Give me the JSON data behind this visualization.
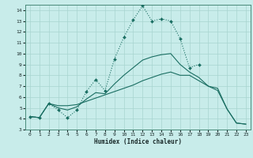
{
  "xlabel": "Humidex (Indice chaleur)",
  "bg_color": "#c8ecea",
  "grid_color": "#a8d4d0",
  "line_color": "#1a6e62",
  "xlim": [
    -0.5,
    23.5
  ],
  "ylim": [
    3,
    14.5
  ],
  "xticks": [
    0,
    1,
    2,
    3,
    4,
    5,
    6,
    7,
    8,
    9,
    10,
    11,
    12,
    13,
    14,
    15,
    16,
    17,
    18,
    19,
    20,
    21,
    22,
    23
  ],
  "yticks": [
    3,
    4,
    5,
    6,
    7,
    8,
    9,
    10,
    11,
    12,
    13,
    14
  ],
  "series1_x": [
    0,
    1,
    2,
    3,
    4,
    5,
    6,
    7,
    8,
    9,
    10,
    11,
    12,
    13,
    14,
    15,
    16,
    17,
    18
  ],
  "series1_y": [
    4.2,
    4.1,
    5.4,
    4.8,
    4.1,
    4.8,
    6.5,
    7.6,
    6.6,
    9.5,
    11.5,
    13.1,
    14.4,
    13.0,
    13.2,
    13.0,
    11.4,
    8.7,
    9.0
  ],
  "series2_x": [
    0,
    1,
    2,
    3,
    4,
    5,
    6,
    7,
    8,
    9,
    10,
    11,
    12,
    13,
    14,
    15,
    16,
    17,
    18,
    19,
    20,
    21,
    22,
    23
  ],
  "series2_y": [
    4.2,
    4.1,
    5.4,
    5.0,
    4.8,
    5.1,
    5.8,
    6.4,
    6.3,
    7.2,
    8.0,
    8.7,
    9.4,
    9.7,
    9.9,
    10.0,
    9.0,
    8.3,
    7.8,
    7.0,
    6.8,
    4.9,
    3.6,
    3.5
  ],
  "series3_x": [
    0,
    1,
    2,
    3,
    4,
    5,
    6,
    7,
    8,
    9,
    10,
    11,
    12,
    13,
    14,
    15,
    16,
    17,
    18,
    19,
    20,
    21,
    22,
    23
  ],
  "series3_y": [
    4.2,
    4.1,
    5.4,
    5.2,
    5.2,
    5.3,
    5.6,
    5.9,
    6.2,
    6.5,
    6.8,
    7.1,
    7.5,
    7.8,
    8.1,
    8.3,
    8.0,
    8.0,
    7.5,
    7.0,
    6.6,
    4.9,
    3.6,
    3.5
  ]
}
